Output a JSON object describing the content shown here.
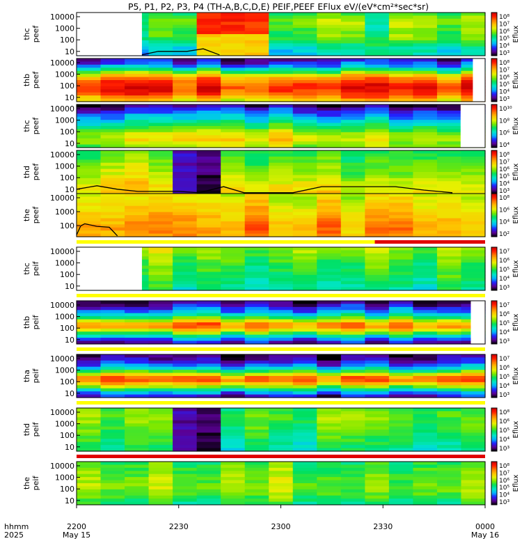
{
  "chart_data": {
    "type": "heatmap",
    "title": "P5, P1, P2, P3, P4 (TH-A,B,C,D,E) PEIF,PEEF EFlux eV/(eV*cm²*sec*sr)",
    "x_axis": {
      "row_label_top": "hhmm",
      "row_label_bottom": "2025",
      "ticks": [
        {
          "label": "2200",
          "sub": "May 15"
        },
        {
          "label": "2230",
          "sub": ""
        },
        {
          "label": "2300",
          "sub": ""
        },
        {
          "label": "2330",
          "sub": ""
        },
        {
          "label": "0000",
          "sub": "May 16"
        }
      ]
    },
    "colorbar_label": "Eflux",
    "colormap": [
      "#000000",
      "#5a0094",
      "#2222ff",
      "#00b4ff",
      "#00e5c8",
      "#00e060",
      "#7ae800",
      "#e8f000",
      "#ffc000",
      "#ff7800",
      "#ff1a00",
      "#c80000"
    ],
    "panels": [
      {
        "id": "thc-peef",
        "line1": "thc",
        "line2": "peef",
        "y_ticks": [
          "10000",
          "1000",
          "100",
          "10"
        ],
        "cb_ticks": [
          "10⁸",
          "10⁷",
          "10⁶",
          "10⁵",
          "10⁴",
          "10³"
        ],
        "profile": [
          0.45,
          0.55,
          0.5,
          0.5,
          0.35,
          0.3
        ],
        "blank_start": [
          0,
          0.16
        ],
        "blank_end": 0,
        "spots": [
          [
            0.3,
            0.45,
            0.9,
            0.7
          ],
          [
            0.73,
            0.76,
            0.4,
            0.45
          ]
        ],
        "sc_line": [
          [
            0.16,
            0.98
          ],
          [
            0.2,
            0.9
          ],
          [
            0.27,
            0.9
          ],
          [
            0.31,
            0.84
          ],
          [
            0.35,
            0.98
          ]
        ]
      },
      {
        "id": "thb-peef",
        "line1": "thb",
        "line2": "peef",
        "y_ticks": [
          "10000",
          "1000",
          "100",
          "10"
        ],
        "cb_ticks": [
          "10⁸",
          "10⁷",
          "10⁶",
          "10⁵",
          "10⁴",
          "10³"
        ],
        "profile": [
          0.1,
          0.2,
          0.45,
          0.75,
          0.88,
          0.92,
          0.82,
          0.65
        ],
        "blank_start": null,
        "blank_end": 0.97,
        "spots": [],
        "sc_line": null
      },
      {
        "id": "thc-peef2",
        "line1": "thc",
        "line2": "peef",
        "y_ticks": [
          "10000",
          "1000",
          "100",
          "10"
        ],
        "cb_ticks": [
          "10¹⁰",
          "10⁸",
          "10⁶",
          "10⁴"
        ],
        "profile": [
          0.05,
          0.2,
          0.32,
          0.45,
          0.6,
          0.66,
          0.55
        ],
        "blank_start": null,
        "blank_end": 0.94,
        "spots": [],
        "sc_line": null
      },
      {
        "id": "thd-peef",
        "line1": "thd",
        "line2": "peef",
        "y_ticks": [
          "10000",
          "1000",
          "100",
          "10"
        ],
        "cb_ticks": [
          "10⁸",
          "10⁷",
          "10⁶",
          "10⁵",
          "10⁴",
          "10³"
        ],
        "profile": [
          0.5,
          0.52,
          0.56,
          0.6,
          0.66,
          0.7
        ],
        "blank_start": null,
        "blank_end": 0,
        "spots": [
          [
            0.25,
            0.31,
            0.12,
            0.1
          ],
          [
            0.31,
            0.36,
            0.08,
            0.05
          ]
        ],
        "sc_line": [
          [
            0,
            0.9
          ],
          [
            0.05,
            0.82
          ],
          [
            0.1,
            0.9
          ],
          [
            0.15,
            0.95
          ],
          [
            0.25,
            0.95
          ],
          [
            0.3,
            0.98
          ],
          [
            0.36,
            0.84
          ],
          [
            0.41,
            0.98
          ],
          [
            0.53,
            0.98
          ],
          [
            0.6,
            0.84
          ],
          [
            0.78,
            0.84
          ],
          [
            0.85,
            0.92
          ],
          [
            0.92,
            0.98
          ]
        ]
      },
      {
        "id": "the-peef",
        "line1": "the",
        "line2": "peef",
        "y_ticks": [
          "10000",
          "1000",
          "100"
        ],
        "cb_ticks": [
          "10⁸",
          "10⁶",
          "10⁴",
          "10²"
        ],
        "profile": [
          0.62,
          0.66,
          0.7,
          0.74,
          0.78,
          0.76
        ],
        "blank_start": null,
        "blank_end": 0,
        "spots": [],
        "sc_line": [
          [
            0,
            0.96
          ],
          [
            0.01,
            0.75
          ],
          [
            0.02,
            0.7
          ],
          [
            0.05,
            0.76
          ],
          [
            0.08,
            0.78
          ],
          [
            0.1,
            0.98
          ]
        ]
      },
      {
        "id": "thc-peif",
        "line1": "thc",
        "line2": "peif",
        "y_ticks": [
          "10000",
          "1000",
          "100",
          "10"
        ],
        "cb_ticks": [
          "10⁷",
          "10⁶",
          "10⁵",
          "10⁴",
          "10³"
        ],
        "profile": [
          0.58,
          0.55,
          0.5,
          0.48,
          0.45,
          0.4
        ],
        "blank_start": [
          0,
          0.16
        ],
        "blank_end": 0,
        "spots": [],
        "sc_line": null
      },
      {
        "id": "thb-peif",
        "line1": "thb",
        "line2": "peif",
        "y_ticks": [
          "10000",
          "1000",
          "100",
          "10"
        ],
        "cb_ticks": [
          "10⁷",
          "10⁶",
          "10⁵",
          "10⁴",
          "10³"
        ],
        "profile": [
          0.05,
          0.15,
          0.3,
          0.55,
          0.85,
          0.6,
          0.28,
          0.08
        ],
        "blank_start": null,
        "blank_end": 0.965,
        "spots": [],
        "sc_line": null
      },
      {
        "id": "tha-peif",
        "line1": "tha",
        "line2": "peif",
        "y_ticks": [
          "10000",
          "1000",
          "100",
          "10"
        ],
        "cb_ticks": [
          "10⁷",
          "10⁶",
          "10⁵",
          "10⁴",
          "10³"
        ],
        "profile": [
          0.05,
          0.1,
          0.25,
          0.55,
          0.88,
          0.62,
          0.3,
          0.08
        ],
        "blank_start": null,
        "blank_end": 0,
        "spots": [],
        "sc_line": null
      },
      {
        "id": "thd-peif",
        "line1": "thd",
        "line2": "peif",
        "y_ticks": [
          "10000",
          "1000",
          "100",
          "10"
        ],
        "cb_ticks": [
          "10⁸",
          "10⁶",
          "10⁵",
          "10⁴",
          "10³"
        ],
        "profile": [
          0.48,
          0.52,
          0.5,
          0.46,
          0.42,
          0.38
        ],
        "blank_start": null,
        "blank_end": 0,
        "spots": [
          [
            0.25,
            0.31,
            0.1,
            0.08
          ],
          [
            0.31,
            0.36,
            0.06,
            0.05
          ]
        ],
        "sc_line": null
      },
      {
        "id": "the-peif",
        "line1": "the",
        "line2": "peif",
        "y_ticks": [
          "10000",
          "1000",
          "100",
          "10"
        ],
        "cb_ticks": [
          "10⁸",
          "10⁷",
          "10⁶",
          "10⁵",
          "10⁴",
          "10³"
        ],
        "profile": [
          0.48,
          0.52,
          0.55,
          0.56,
          0.52,
          0.42
        ],
        "blank_start": null,
        "blank_end": 0,
        "spots": [],
        "sc_line": null
      }
    ],
    "status_bars": [
      {
        "after_panel": "the-peef",
        "segments": [
          {
            "from": 0,
            "to": 0.73,
            "color": "#ffff00"
          },
          {
            "from": 0.73,
            "to": 1,
            "color": "#e00000"
          }
        ]
      },
      {
        "after_panel": "thc-peif",
        "segments": [
          {
            "from": 0,
            "to": 1,
            "color": "#ffff00"
          }
        ]
      },
      {
        "after_panel": "thb-peif",
        "segments": [
          {
            "from": 0,
            "to": 1,
            "color": "#ffff00"
          }
        ]
      },
      {
        "after_panel": "tha-peif",
        "segments": [
          {
            "from": 0,
            "to": 1,
            "color": "#ffff00"
          }
        ]
      },
      {
        "after_panel": "thd-peif",
        "segments": [
          {
            "from": 0,
            "to": 1,
            "color": "#e00000"
          }
        ]
      }
    ]
  }
}
